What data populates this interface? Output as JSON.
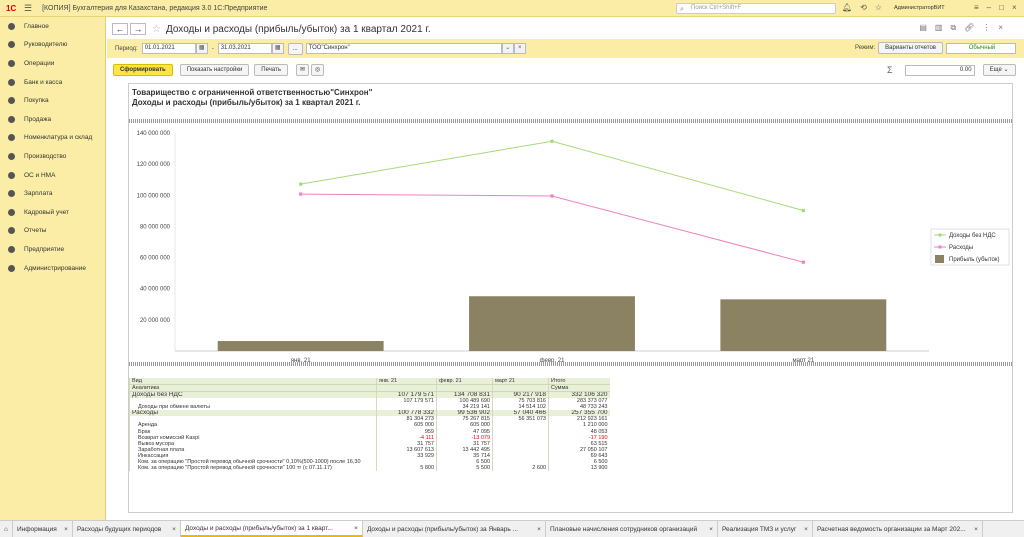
{
  "topbar": {
    "logo": "1С",
    "app_title": "[КОПИЯ] Бухгалтерия для Казахстана, редакция 3.0 1С:Предприятие",
    "search_placeholder": "Поиск Ctrl+Shift+F",
    "user": "АдминистраторВИТ"
  },
  "sidebar": {
    "items": [
      {
        "label": "Главное",
        "icon": "menu-icon"
      },
      {
        "label": "Руководителю",
        "icon": "chart-icon"
      },
      {
        "label": "Операции",
        "icon": "operations-icon"
      },
      {
        "label": "Банк и касса",
        "icon": "bank-icon"
      },
      {
        "label": "Покупка",
        "icon": "cart-icon"
      },
      {
        "label": "Продажа",
        "icon": "sale-icon"
      },
      {
        "label": "Номенклатура и склад",
        "icon": "warehouse-icon"
      },
      {
        "label": "Производство",
        "icon": "factory-icon"
      },
      {
        "label": "ОС и НМА",
        "icon": "assets-icon"
      },
      {
        "label": "Зарплата",
        "icon": "salary-icon"
      },
      {
        "label": "Кадровый учет",
        "icon": "staff-icon"
      },
      {
        "label": "Отчеты",
        "icon": "reports-icon"
      },
      {
        "label": "Предприятие",
        "icon": "enterprise-icon"
      },
      {
        "label": "Администрирование",
        "icon": "gear-icon"
      }
    ]
  },
  "header": {
    "back": "←",
    "forward": "→",
    "title": "Доходы и расходы (прибыль/убыток)  за 1 квартал 2021 г."
  },
  "params": {
    "period_label": "Период:",
    "date_from": "01.01.2021",
    "dash": "-",
    "date_to": "31.03.2021",
    "dots": "...",
    "org": "ТОО\"Синхрон\"",
    "clear": "×",
    "mode_label": "Режим:",
    "variants_btn": "Варианты отчетов",
    "mode_value": "Обычный"
  },
  "actions": {
    "form": "Сформировать",
    "settings": "Показать настройки",
    "print": "Печать",
    "sum_symbol": "Σ",
    "sum_value": "0.00",
    "more": "Еще"
  },
  "report": {
    "org_title": "Товарищество с ограниченной ответственностью\"Синхрон\"",
    "sub_title": "Доходы и расходы (прибыль/убыток)  за 1 квартал 2021 г."
  },
  "chart_data": {
    "type": "line",
    "categories": [
      "янв. 21",
      "февр. 21",
      "март 21"
    ],
    "y_ticks": [
      "0",
      "20 000 000",
      "40 000 000",
      "60 000 000",
      "80 000 000",
      "100 000 000",
      "120 000 000",
      "140 000 000"
    ],
    "ylim": [
      0,
      140000000
    ],
    "series": [
      {
        "name": "Доходы без НДС",
        "type": "line",
        "color": "#a8d878",
        "values": [
          107179571,
          134708831,
          90217918
        ]
      },
      {
        "name": "Расходы",
        "type": "line",
        "color": "#f080c0",
        "values": [
          100778332,
          99536902,
          57040466
        ]
      },
      {
        "name": "Прибыль (убыток)",
        "type": "bar",
        "color": "#8b8163",
        "values": [
          6401239,
          35171929,
          33177452
        ]
      }
    ],
    "legend": "right",
    "grid": false
  },
  "table": {
    "headers": [
      "Вид",
      "янв. 21",
      "февр. 21",
      "март 21",
      "Итого"
    ],
    "headers2": [
      "Аналитика",
      "",
      "",
      "",
      "Сумма"
    ],
    "rows": [
      {
        "kind": "grp",
        "cells": [
          "Доходы без НДС",
          "107 179 571",
          "134 708 831",
          "90 217 918",
          "332 106 320"
        ]
      },
      {
        "kind": "sub",
        "cells": [
          "",
          "107 179 571",
          "100 489 690",
          "75 703 816",
          "283 373 077"
        ]
      },
      {
        "kind": "row",
        "cells": [
          "Доходы при обмене валюты",
          "",
          "34 219 141",
          "14 514 102",
          "48 733 243"
        ]
      },
      {
        "kind": "grp",
        "cells": [
          "Расходы",
          "100 778 332",
          "99 536 902",
          "57 040 466",
          "257 355 700"
        ]
      },
      {
        "kind": "sub",
        "cells": [
          "",
          "81 304 273",
          "75 267 815",
          "56 351 073",
          "212 923 161"
        ]
      },
      {
        "kind": "row",
        "cells": [
          "Аренда",
          "605 000",
          "605 000",
          "",
          "1 210 000"
        ]
      },
      {
        "kind": "row",
        "cells": [
          "Брак",
          "959",
          "47 095",
          "",
          "48 053"
        ]
      },
      {
        "kind": "row",
        "cells": [
          "Возврат комиссий Kaspi",
          "-4 111",
          "-13 079",
          "",
          "-17 190"
        ]
      },
      {
        "kind": "row",
        "cells": [
          "Вывоз мусора",
          "31 757",
          "31 757",
          "",
          "63 515"
        ]
      },
      {
        "kind": "row",
        "cells": [
          "Заработная плата",
          "13 607 613",
          "13 442 495",
          "",
          "27 050 107"
        ]
      },
      {
        "kind": "row",
        "cells": [
          "Инкассация",
          "33 929",
          "35 714",
          "",
          "69 643"
        ]
      },
      {
        "kind": "row",
        "cells": [
          "Ком. за операцию \"Простой перевод обычной срочности\" 0,10%(500-1000) после 16,30",
          "",
          "6 500",
          "",
          "6 500"
        ]
      },
      {
        "kind": "row",
        "cells": [
          "Ком. за операцию \"Простой перевод обычной срочности\" 100 тг (с 07.11.17)",
          "5 800",
          "5 500",
          "2 600",
          "13 900"
        ]
      }
    ]
  },
  "bottom_tabs": [
    {
      "label": "Информация",
      "active": false
    },
    {
      "label": "Расходы будущих периодов",
      "active": false
    },
    {
      "label": "Доходы и расходы (прибыль/убыток)  за 1 кварт...",
      "active": true
    },
    {
      "label": "Доходы и расходы (прибыль/убыток)  за Январь ...",
      "active": false
    },
    {
      "label": "Плановые начисления сотрудников организаций",
      "active": false
    },
    {
      "label": "Реализация ТМЗ и услуг",
      "active": false
    },
    {
      "label": "Расчетная ведомость организации  за Март 202...",
      "active": false
    }
  ]
}
